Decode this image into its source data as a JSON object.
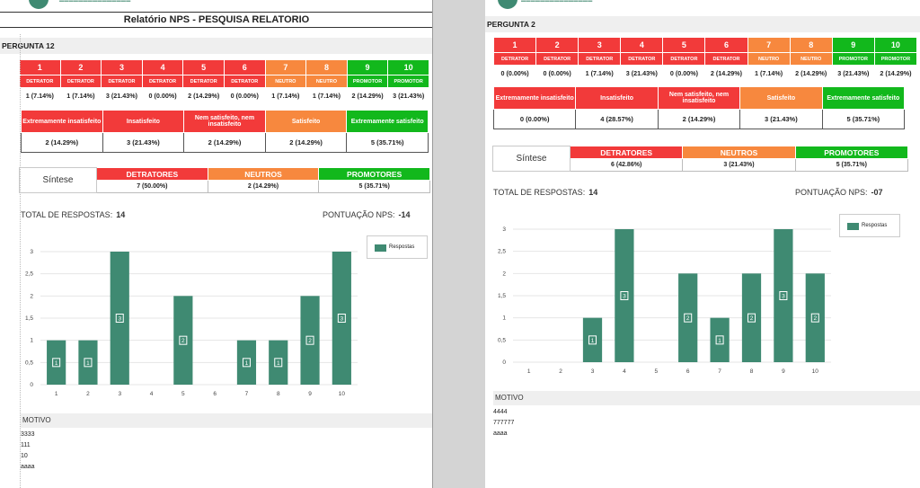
{
  "left": {
    "title": "Relatório NPS - PESQUISA RELATORIO",
    "question": "PERGUNTA 12",
    "scale": [
      {
        "n": "1",
        "lab": "DETRATOR",
        "cnt": "1 (7.14%)",
        "c": "red"
      },
      {
        "n": "2",
        "lab": "DETRATOR",
        "cnt": "1 (7.14%)",
        "c": "red"
      },
      {
        "n": "3",
        "lab": "DETRATOR",
        "cnt": "3 (21.43%)",
        "c": "red"
      },
      {
        "n": "4",
        "lab": "DETRATOR",
        "cnt": "0 (0.00%)",
        "c": "red"
      },
      {
        "n": "5",
        "lab": "DETRATOR",
        "cnt": "2 (14.29%)",
        "c": "red"
      },
      {
        "n": "6",
        "lab": "DETRATOR",
        "cnt": "0 (0.00%)",
        "c": "red"
      },
      {
        "n": "7",
        "lab": "NEUTRO",
        "cnt": "1 (7.14%)",
        "c": "org"
      },
      {
        "n": "8",
        "lab": "NEUTRO",
        "cnt": "1 (7.14%)",
        "c": "org"
      },
      {
        "n": "9",
        "lab": "PROMOTOR",
        "cnt": "2 (14.29%)",
        "c": "grn"
      },
      {
        "n": "10",
        "lab": "PROMOTOR",
        "cnt": "3 (21.43%)",
        "c": "grn"
      }
    ],
    "satisfaction": [
      {
        "lab": "Extremamente insatisfeito",
        "val": "2 (14.29%)",
        "c": "red"
      },
      {
        "lab": "Insatisfeito",
        "val": "3 (21.43%)",
        "c": "red"
      },
      {
        "lab": "Nem satisfeito, nem insatisfeito",
        "val": "2 (14.29%)",
        "c": "red"
      },
      {
        "lab": "Satisfeito",
        "val": "2 (14.29%)",
        "c": "org"
      },
      {
        "lab": "Extremamente satisfeito",
        "val": "5 (35.71%)",
        "c": "grn"
      }
    ],
    "synthesis": {
      "caption": "Síntese",
      "detratores": "DETRATORES",
      "detratores_val": "7 (50.00%)",
      "neutros": "NEUTROS",
      "neutros_val": "2 (14.29%)",
      "promotores": "PROMOTORES",
      "promotores_val": "5 (35.71%)"
    },
    "total_label": "TOTAL DE RESPOSTAS:",
    "total_value": "14",
    "nps_label": "PONTUAÇÃO NPS:",
    "nps_value": "-14",
    "motivo_label": "MOTIVO",
    "motivos": [
      "3333",
      "111",
      "10",
      "aaaa"
    ]
  },
  "right": {
    "question": "PERGUNTA 2",
    "scale": [
      {
        "n": "1",
        "lab": "DETRATOR",
        "cnt": "0 (0.00%)",
        "c": "red"
      },
      {
        "n": "2",
        "lab": "DETRATOR",
        "cnt": "0 (0.00%)",
        "c": "red"
      },
      {
        "n": "3",
        "lab": "DETRATOR",
        "cnt": "1 (7.14%)",
        "c": "red"
      },
      {
        "n": "4",
        "lab": "DETRATOR",
        "cnt": "3 (21.43%)",
        "c": "red"
      },
      {
        "n": "5",
        "lab": "DETRATOR",
        "cnt": "0 (0.00%)",
        "c": "red"
      },
      {
        "n": "6",
        "lab": "DETRATOR",
        "cnt": "2 (14.29%)",
        "c": "red"
      },
      {
        "n": "7",
        "lab": "NEUTRO",
        "cnt": "1 (7.14%)",
        "c": "org"
      },
      {
        "n": "8",
        "lab": "NEUTRO",
        "cnt": "2 (14.29%)",
        "c": "org"
      },
      {
        "n": "9",
        "lab": "PROMOTOR",
        "cnt": "3 (21.43%)",
        "c": "grn"
      },
      {
        "n": "10",
        "lab": "PROMOTOR",
        "cnt": "2 (14.29%)",
        "c": "grn"
      }
    ],
    "satisfaction": [
      {
        "lab": "Extremamente insatisfeito",
        "val": "0 (0.00%)",
        "c": "red"
      },
      {
        "lab": "Insatisfeito",
        "val": "4 (28.57%)",
        "c": "red"
      },
      {
        "lab": "Nem satisfeito, nem insatisfeito",
        "val": "2 (14.29%)",
        "c": "red"
      },
      {
        "lab": "Satisfeito",
        "val": "3 (21.43%)",
        "c": "org"
      },
      {
        "lab": "Extremamente satisfeito",
        "val": "5 (35.71%)",
        "c": "grn"
      }
    ],
    "synthesis": {
      "caption": "Síntese",
      "detratores": "DETRATORES",
      "detratores_val": "6 (42.86%)",
      "neutros": "NEUTROS",
      "neutros_val": "3 (21.43%)",
      "promotores": "PROMOTORES",
      "promotores_val": "5 (35.71%)"
    },
    "total_label": "TOTAL DE RESPOSTAS:",
    "total_value": "14",
    "nps_label": "PONTUAÇÃO NPS:",
    "nps_value": "-07",
    "motivo_label": "MOTIVO",
    "motivos": [
      "4444",
      "777777",
      "aaaa"
    ]
  },
  "colors": {
    "red": "#f23a3a",
    "orange": "#f7883e",
    "green": "#12b81c",
    "bar": "#3f8a72"
  },
  "chart_data": [
    {
      "type": "bar",
      "categories": [
        "1",
        "2",
        "3",
        "4",
        "5",
        "6",
        "7",
        "8",
        "9",
        "10"
      ],
      "series": [
        {
          "name": "Respostas",
          "values": [
            1,
            1,
            3,
            0,
            2,
            0,
            1,
            1,
            2,
            3
          ]
        }
      ],
      "ylim": [
        0,
        3
      ],
      "yticks": [
        "0",
        "0,5",
        "1",
        "1,5",
        "2",
        "2,5",
        "3"
      ],
      "legend": "top-right",
      "grid": true
    },
    {
      "type": "bar",
      "categories": [
        "1",
        "2",
        "3",
        "4",
        "5",
        "6",
        "7",
        "8",
        "9",
        "10"
      ],
      "series": [
        {
          "name": "Respostas",
          "values": [
            0,
            0,
            1,
            3,
            0,
            2,
            1,
            2,
            3,
            2
          ]
        }
      ],
      "ylim": [
        0,
        3
      ],
      "yticks": [
        "0",
        "0,5",
        "1",
        "1,5",
        "2",
        "2,5",
        "3"
      ],
      "legend": "top-right",
      "grid": true
    }
  ]
}
